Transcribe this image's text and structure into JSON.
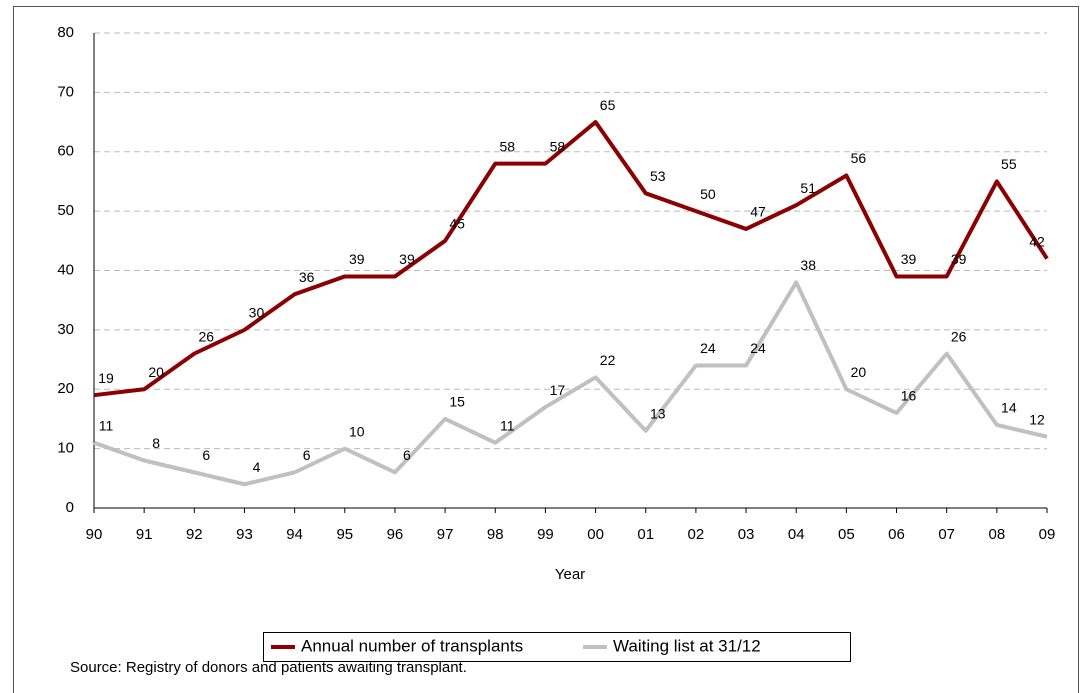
{
  "chart_data": {
    "type": "line",
    "x_label": "Year",
    "source": "Source: Registry of donors and patients awaiting transplant.",
    "categories": [
      "90",
      "91",
      "92",
      "93",
      "94",
      "95",
      "96",
      "97",
      "98",
      "99",
      "00",
      "01",
      "02",
      "03",
      "04",
      "05",
      "06",
      "07",
      "08",
      "09"
    ],
    "series": [
      {
        "name": "Annual number of transplants",
        "color": "#8b0000",
        "values": [
          19,
          20,
          26,
          30,
          36,
          39,
          39,
          45,
          58,
          58,
          65,
          53,
          50,
          47,
          51,
          56,
          39,
          39,
          55,
          42
        ]
      },
      {
        "name": "Waiting list at 31/12",
        "color": "#c0c0c0",
        "values": [
          11,
          8,
          6,
          4,
          6,
          10,
          6,
          15,
          11,
          17,
          22,
          13,
          24,
          24,
          38,
          20,
          16,
          26,
          14,
          12
        ]
      }
    ],
    "ylim": [
      0,
      80
    ],
    "yticks": [
      0,
      10,
      20,
      30,
      40,
      50,
      60,
      70,
      80
    ],
    "grid": true,
    "legend": "bottom"
  }
}
